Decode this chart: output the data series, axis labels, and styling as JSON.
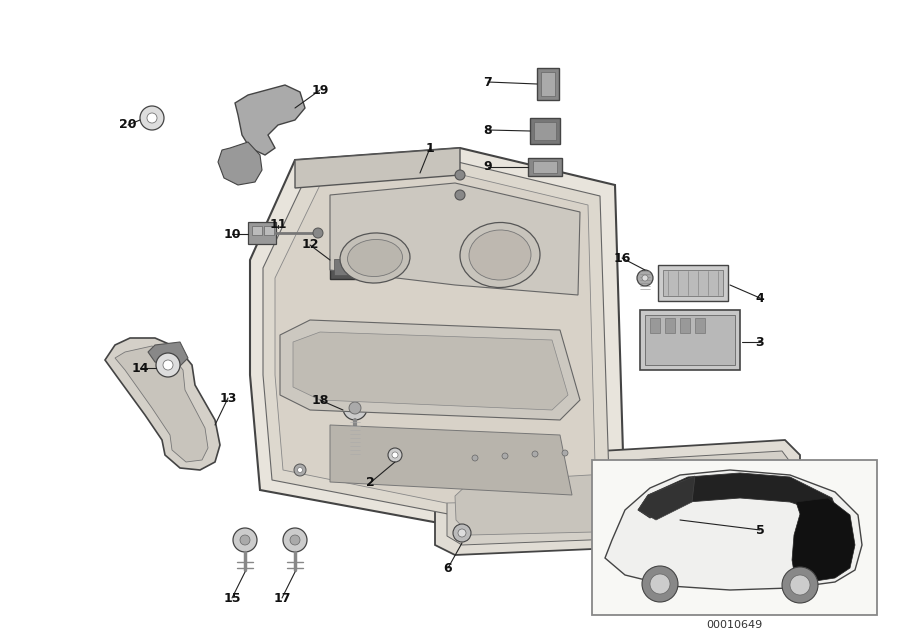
{
  "bg_color": "#ffffff",
  "line_color": "#333333",
  "part_number": "00010649",
  "figure_size": [
    9.0,
    6.35
  ],
  "dpi": 100
}
